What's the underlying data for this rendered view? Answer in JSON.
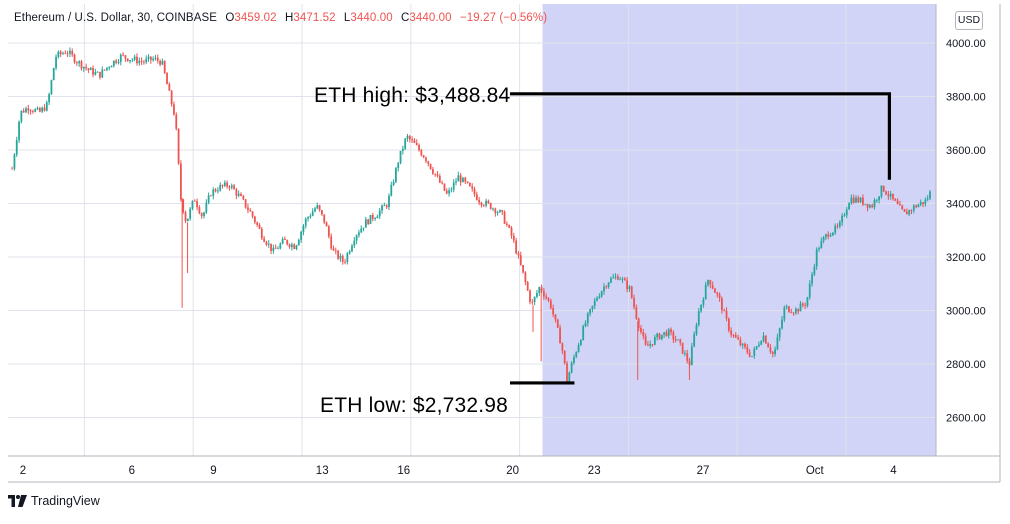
{
  "legend": {
    "symbol": "Ethereum / U.S. Dollar, 30, COINBASE",
    "o_label": "O",
    "o_value": "3459.02",
    "h_label": "H",
    "h_value": "3471.52",
    "l_label": "L",
    "l_value": "3440.00",
    "c_label": "C",
    "c_value": "3440.00",
    "change": "−19.27 (−0.56%)"
  },
  "currency": "USD",
  "brand": "TradingView",
  "annotations": {
    "high": "ETH high: $3,488.84",
    "low": "ETH low: $2,732.98"
  },
  "colors": {
    "up": "#26a69a",
    "down": "#ef5350",
    "highlight": "#d1d4f6",
    "grid": "#e0e3eb",
    "text": "#131722"
  },
  "chart_data": {
    "type": "candlestick",
    "title": "Ethereum / U.S. Dollar, 30, COINBASE",
    "ylim": [
      2520,
      4110
    ],
    "y_ticks": [
      4000,
      3800,
      3600,
      3400,
      3200,
      3000,
      2800,
      2600
    ],
    "y_tick_labels": [
      "4000.00",
      "3800.00",
      "3600.00",
      "3400.00",
      "3200.00",
      "3000.00",
      "2800.00",
      "2600.00"
    ],
    "x_ticks": [
      {
        "day": 2,
        "label": "2"
      },
      {
        "day": 6,
        "label": "6"
      },
      {
        "day": 9,
        "label": "9"
      },
      {
        "day": 13,
        "label": "13"
      },
      {
        "day": 16,
        "label": "16"
      },
      {
        "day": 20,
        "label": "20"
      },
      {
        "day": 23,
        "label": "23"
      },
      {
        "day": 27,
        "label": "27"
      },
      {
        "day": 31,
        "label": "Oct"
      },
      {
        "day": 34,
        "label": "4"
      }
    ],
    "highlight_from_day": 21.1,
    "price_path_approx": [
      [
        1.6,
        3530
      ],
      [
        1.9,
        3740
      ],
      [
        2.2,
        3760
      ],
      [
        2.6,
        3740
      ],
      [
        2.9,
        3770
      ],
      [
        3.2,
        3950
      ],
      [
        3.6,
        3970
      ],
      [
        4.0,
        3930
      ],
      [
        4.4,
        3900
      ],
      [
        4.8,
        3880
      ],
      [
        5.2,
        3920
      ],
      [
        5.6,
        3950
      ],
      [
        6.0,
        3940
      ],
      [
        6.4,
        3930
      ],
      [
        6.8,
        3940
      ],
      [
        7.1,
        3930
      ],
      [
        7.4,
        3800
      ],
      [
        7.6,
        3720
      ],
      [
        7.8,
        3420
      ],
      [
        8.0,
        3330
      ],
      [
        8.3,
        3420
      ],
      [
        8.6,
        3350
      ],
      [
        8.9,
        3440
      ],
      [
        9.2,
        3460
      ],
      [
        9.6,
        3470
      ],
      [
        10.0,
        3420
      ],
      [
        10.4,
        3360
      ],
      [
        10.8,
        3280
      ],
      [
        11.2,
        3220
      ],
      [
        11.6,
        3260
      ],
      [
        12.0,
        3240
      ],
      [
        12.4,
        3340
      ],
      [
        12.8,
        3390
      ],
      [
        13.1,
        3330
      ],
      [
        13.4,
        3220
      ],
      [
        13.8,
        3180
      ],
      [
        14.2,
        3280
      ],
      [
        14.6,
        3330
      ],
      [
        15.0,
        3360
      ],
      [
        15.4,
        3400
      ],
      [
        15.8,
        3560
      ],
      [
        16.1,
        3650
      ],
      [
        16.4,
        3620
      ],
      [
        16.8,
        3570
      ],
      [
        17.2,
        3500
      ],
      [
        17.6,
        3430
      ],
      [
        18.0,
        3500
      ],
      [
        18.4,
        3460
      ],
      [
        18.8,
        3410
      ],
      [
        19.2,
        3390
      ],
      [
        19.6,
        3360
      ],
      [
        20.0,
        3270
      ],
      [
        20.4,
        3130
      ],
      [
        20.7,
        3020
      ],
      [
        21.0,
        3090
      ],
      [
        21.4,
        3020
      ],
      [
        21.8,
        2870
      ],
      [
        22.0,
        2740
      ],
      [
        22.3,
        2840
      ],
      [
        22.7,
        2960
      ],
      [
        23.1,
        3050
      ],
      [
        23.5,
        3110
      ],
      [
        23.9,
        3130
      ],
      [
        24.3,
        3080
      ],
      [
        24.6,
        2960
      ],
      [
        24.9,
        2860
      ],
      [
        25.3,
        2900
      ],
      [
        25.7,
        2920
      ],
      [
        26.1,
        2880
      ],
      [
        26.5,
        2800
      ],
      [
        26.8,
        2980
      ],
      [
        27.2,
        3120
      ],
      [
        27.6,
        3040
      ],
      [
        28.0,
        2920
      ],
      [
        28.4,
        2870
      ],
      [
        28.8,
        2830
      ],
      [
        29.2,
        2910
      ],
      [
        29.6,
        2830
      ],
      [
        30.0,
        3010
      ],
      [
        30.4,
        3000
      ],
      [
        30.8,
        3030
      ],
      [
        31.2,
        3230
      ],
      [
        31.6,
        3290
      ],
      [
        32.0,
        3310
      ],
      [
        32.4,
        3420
      ],
      [
        32.8,
        3410
      ],
      [
        33.2,
        3390
      ],
      [
        33.6,
        3460
      ],
      [
        34.0,
        3410
      ],
      [
        34.4,
        3360
      ],
      [
        34.8,
        3390
      ],
      [
        35.2,
        3410
      ],
      [
        35.4,
        3450
      ]
    ],
    "reference_lines": [
      {
        "label": "ETH high: $3,488.84",
        "value": 3488.84,
        "day": 34.0
      },
      {
        "label": "ETH low: $2,732.98",
        "value": 2732.98,
        "day": 22.2
      }
    ]
  }
}
